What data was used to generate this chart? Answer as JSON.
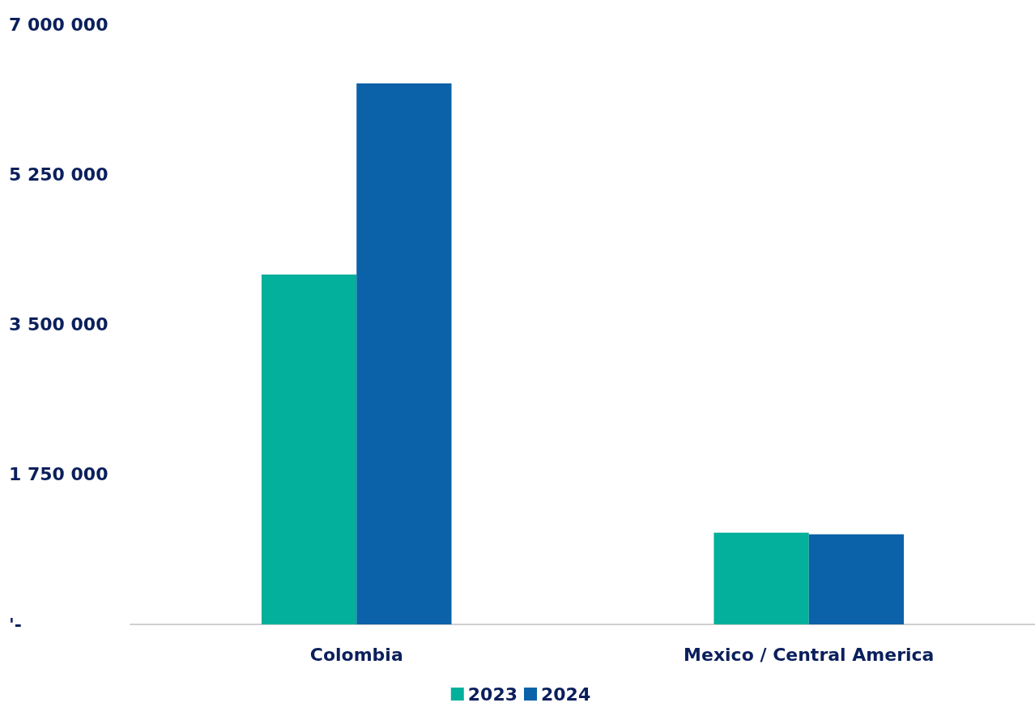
{
  "chart_data": {
    "type": "bar",
    "categories": [
      "Colombia",
      "Mexico / Central America"
    ],
    "series": [
      {
        "name": "2023",
        "color": "#03b09c",
        "values": [
          4080000,
          1070000
        ]
      },
      {
        "name": "2024",
        "color": "#0c62a8",
        "values": [
          6310000,
          1050000
        ]
      }
    ],
    "ylim": [
      0,
      7000000
    ],
    "yticks": [
      {
        "value": 0,
        "label": "'-"
      },
      {
        "value": 1750000,
        "label": "1 750 000"
      },
      {
        "value": 3500000,
        "label": "3 500 000"
      },
      {
        "value": 5250000,
        "label": "5 250 000"
      },
      {
        "value": 7000000,
        "label": "7 000 000"
      }
    ],
    "grid": false,
    "legend": "bottom"
  }
}
